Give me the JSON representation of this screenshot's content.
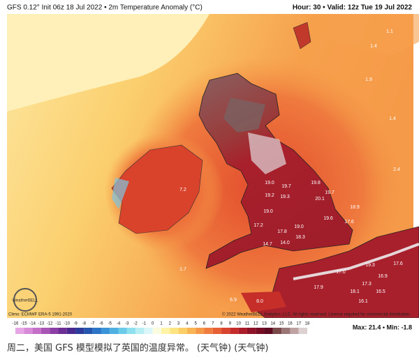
{
  "header": {
    "title": "GFS 0.12° Init 06z 18 Jul 2022 • 2m Temperature Anomaly (°C)",
    "valid": "Hour: 30 • Valid: 12z Tue 19 Jul 2022"
  },
  "map": {
    "labels": [
      "1.1",
      "1.4",
      "1.9",
      "1.4",
      "2.4",
      "7.2",
      "19.0",
      "19.7",
      "19.8",
      "19.2",
      "19.3",
      "20.1",
      "19.7",
      "19.0",
      "18.9",
      "19.6",
      "17.6",
      "17.2",
      "17.8",
      "19.0",
      "18.3",
      "14.7",
      "14.0",
      "17.0",
      "19.3",
      "17.6",
      "16.9",
      "17.3",
      "17.9",
      "18.1",
      "16.5",
      "16.1",
      "8.0",
      "6.9",
      "1.7"
    ],
    "logo": "WeatherBELL"
  },
  "footer": {
    "climo": "Climo: ECMWF ERA-5 1991-2020",
    "copyright": "© 2022 WeatherBELL Analytics, LLC. All rights reserved. License required for commercial distribution.",
    "maxmin": "Max: 21.4 • Min: -1.8"
  },
  "colorbar": {
    "ticks": [
      -16,
      -15,
      -14,
      -13,
      -12,
      -11,
      -10,
      -9,
      -8,
      -7,
      -6,
      -5,
      -4,
      -3,
      -2,
      -1,
      0,
      1,
      2,
      3,
      4,
      5,
      6,
      7,
      8,
      9,
      10,
      11,
      12,
      13,
      14,
      15,
      16,
      17,
      18
    ],
    "colors": [
      "#e7a6e6",
      "#d88bd8",
      "#c46fc8",
      "#a855b5",
      "#8c3fa5",
      "#6e2f95",
      "#4b2a8f",
      "#2d3c9a",
      "#2456b0",
      "#2c74c8",
      "#3b93d8",
      "#4fb0e2",
      "#6ccbe8",
      "#8fe0ee",
      "#b6eef4",
      "#dcf7f8",
      "#fbfbe0",
      "#fff3a8",
      "#fde483",
      "#fbcf66",
      "#f9b454",
      "#f6984a",
      "#f07c3f",
      "#e65f35",
      "#d8442e",
      "#c42d2a",
      "#ab1d29",
      "#8f1328",
      "#760d25",
      "#5e0b22",
      "#7a4a4a",
      "#9a7676",
      "#bfa3a3",
      "#ddd0d0"
    ]
  },
  "caption": "周二，美国 GFS 模型模拟了英国的温度异常。 (天气钟) (天气钟)"
}
